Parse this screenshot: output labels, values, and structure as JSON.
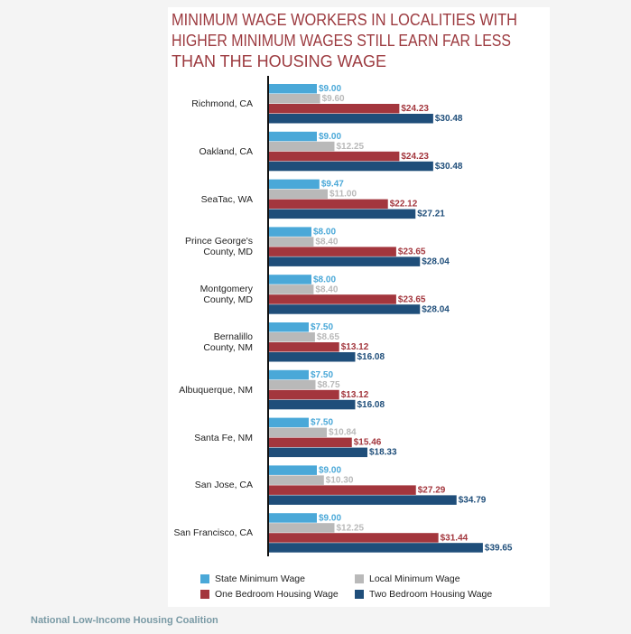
{
  "chart_data": {
    "type": "bar",
    "title": [
      "MINIMUM WAGE WORKERS IN LOCALITIES WITH",
      "HIGHER MINIMUM WAGES STILL EARN FAR LESS",
      "THAN THE HOUSING WAGE"
    ],
    "categories": [
      "Richmond, CA",
      "Oakland, CA",
      "SeaTac, WA",
      "Prince George's\nCounty, MD",
      "Montgomery\nCounty, MD",
      "Bernalillo\nCounty, NM",
      "Albuquerque, NM",
      "Santa Fe, NM",
      "San Jose, CA",
      "San Francisco, CA"
    ],
    "series": [
      {
        "name": "State Minimum Wage",
        "color": "#4aa8d8",
        "values": [
          9.0,
          9.0,
          9.47,
          8.0,
          8.0,
          7.5,
          7.5,
          7.5,
          9.0,
          9.0
        ],
        "value_labels": [
          "$9.00",
          "$9.00",
          "$9.47",
          "$8.00",
          "$8.00",
          "$7.50",
          "$7.50",
          "$7.50",
          "$9.00",
          "$9.00"
        ]
      },
      {
        "name": "Local Minimum Wage",
        "color": "#b9b9b9",
        "values": [
          9.6,
          12.25,
          11.0,
          8.4,
          8.4,
          8.65,
          8.75,
          10.84,
          10.3,
          12.25
        ],
        "value_labels": [
          "$9.60",
          "$12.25",
          "$11.00",
          "$8.40",
          "$8.40",
          "$8.65",
          "$8.75",
          "$10.84",
          "$10.30",
          "$12.25"
        ]
      },
      {
        "name": "One Bedroom Housing Wage",
        "color": "#a3363d",
        "values": [
          24.23,
          24.23,
          22.12,
          23.65,
          23.65,
          13.12,
          13.12,
          15.46,
          27.29,
          31.44
        ],
        "value_labels": [
          "$24.23",
          "$24.23",
          "$22.12",
          "$23.65",
          "$23.65",
          "$13.12",
          "$13.12",
          "$15.46",
          "$27.29",
          "$31.44"
        ]
      },
      {
        "name": "Two Bedroom Housing Wage",
        "color": "#1f4e7a",
        "values": [
          30.48,
          30.48,
          27.21,
          28.04,
          28.04,
          16.08,
          16.08,
          18.33,
          34.79,
          39.65
        ],
        "value_labels": [
          "$30.48",
          "$30.48",
          "$27.21",
          "$28.04",
          "$28.04",
          "$16.08",
          "$16.08",
          "$18.33",
          "$34.79",
          "$39.65"
        ]
      }
    ],
    "xlim": [
      0,
      40
    ],
    "orientation": "horizontal",
    "source": "National Low-Income Housing Coalition"
  }
}
